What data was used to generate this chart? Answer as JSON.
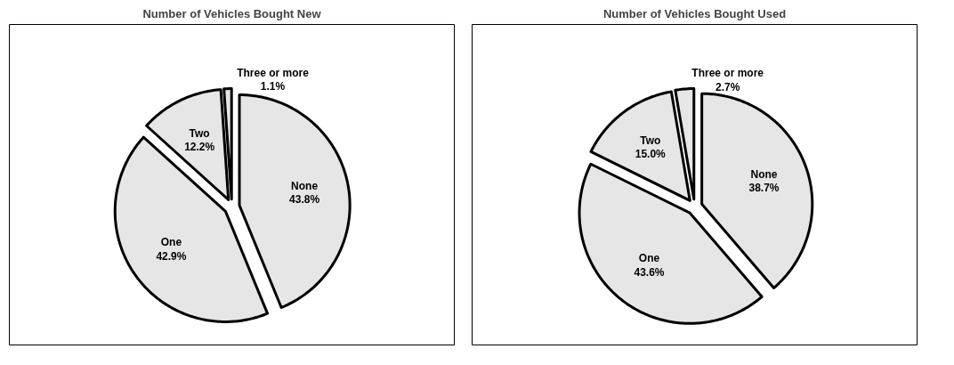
{
  "chart_data": [
    {
      "type": "pie",
      "title": "Number of Vehicles Bought New",
      "categories": [
        "None",
        "One",
        "Two",
        "Three or more"
      ],
      "values": [
        43.8,
        42.9,
        12.2,
        1.1
      ],
      "value_labels": [
        "43.8%",
        "42.9%",
        "12.2%",
        "1.1%"
      ],
      "colors": [
        "#e6e6e6",
        "#e6e6e6",
        "#e6e6e6",
        "#e6e6e6"
      ]
    },
    {
      "type": "pie",
      "title": "Number of Vehicles Bought Used",
      "categories": [
        "None",
        "One",
        "Two",
        "Three or more"
      ],
      "values": [
        38.7,
        43.6,
        15.0,
        2.7
      ],
      "value_labels": [
        "38.7%",
        "43.6%",
        "15.0%",
        "2.7%"
      ],
      "colors": [
        "#e6e6e6",
        "#e6e6e6",
        "#e6e6e6",
        "#e6e6e6"
      ]
    }
  ]
}
